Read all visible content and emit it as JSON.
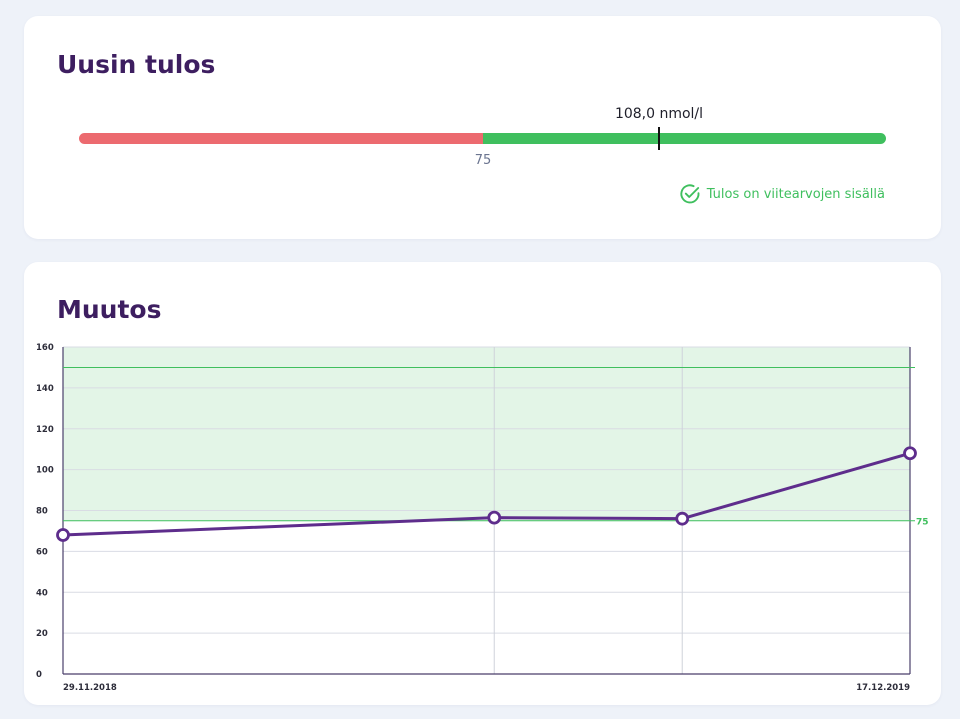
{
  "latest": {
    "title": "Uusin tulos",
    "value_label": "108,0 nmol/l",
    "value": 108.0,
    "threshold_label": "75",
    "threshold": 75,
    "scale_max": 140,
    "status_text": "Tulos on viitearvojen sisällä",
    "colors": {
      "below": "#ec6a6f",
      "within": "#3fbf5e",
      "marker": "#111111"
    }
  },
  "change": {
    "title": "Muutos"
  },
  "chart_data": {
    "type": "line",
    "x_labels": [
      "29.11.2018",
      "",
      "",
      "17.12.2019"
    ],
    "x_dates": [
      "2018-11-29",
      "2019-06-12",
      "2019-09-05",
      "2019-12-17"
    ],
    "series": [
      {
        "values": [
          68,
          76.5,
          76,
          108
        ],
        "color": "#5e2d8c"
      }
    ],
    "ylim": [
      0,
      160
    ],
    "yticks": [
      0,
      20,
      40,
      60,
      80,
      100,
      120,
      140,
      160
    ],
    "reference_range": {
      "low": 75,
      "high": 150,
      "color": "#3fbf5e",
      "fill": "#e3f5e7"
    },
    "reference_label": "75",
    "grid": true,
    "legend": "none"
  }
}
